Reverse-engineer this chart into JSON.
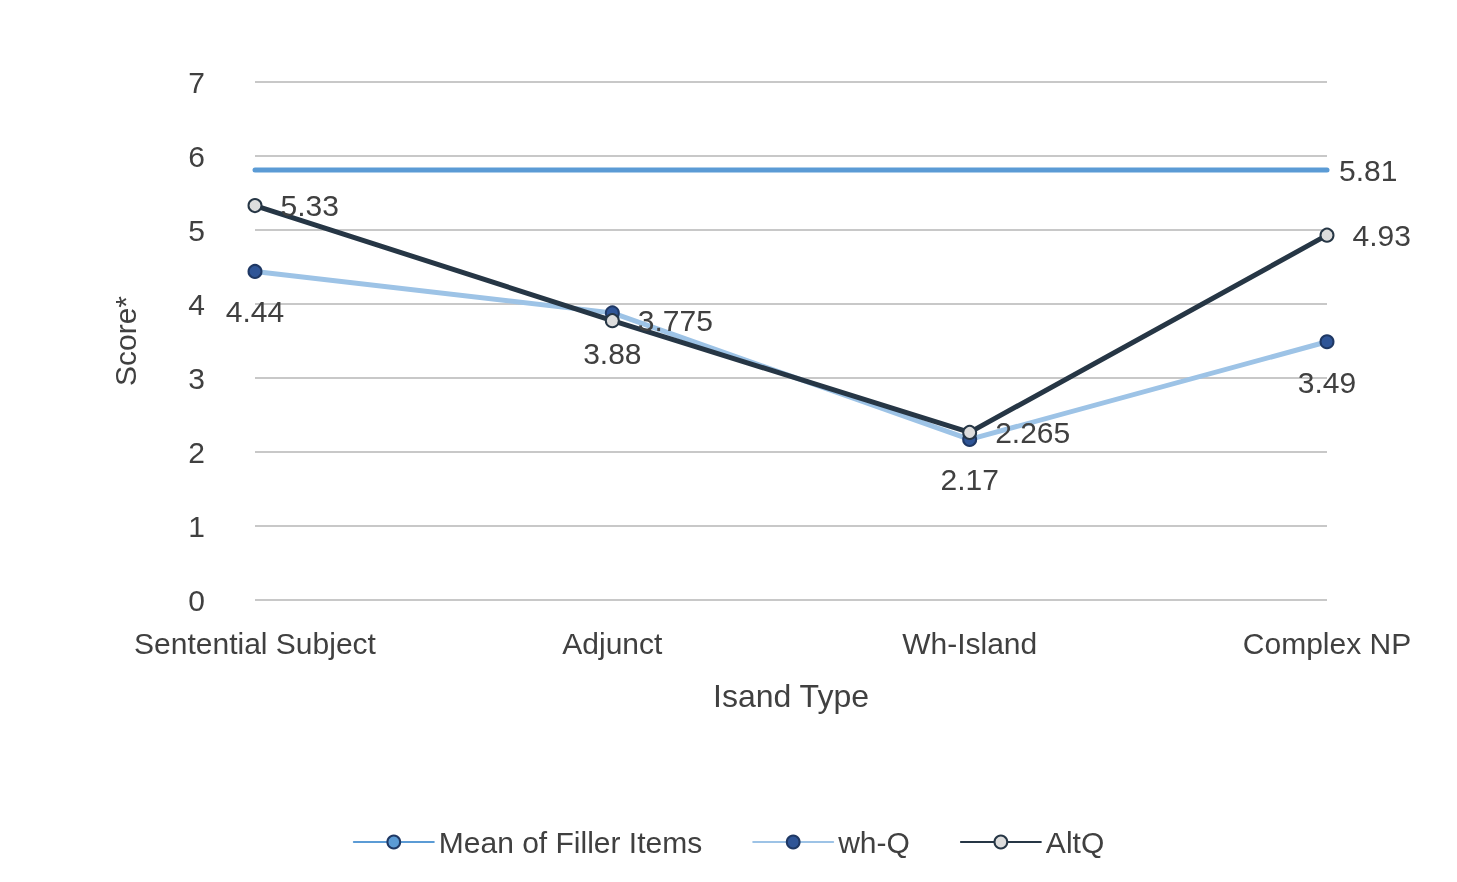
{
  "chart_data": {
    "type": "line",
    "xlabel": "Isand Type",
    "ylabel": "Score*",
    "categories": [
      "Sentential Subject",
      "Adjunct",
      "Wh-Island",
      "Complex NP"
    ],
    "series": [
      {
        "name": "Mean of Filler Items",
        "color": "#5b9bd5",
        "marker": "none",
        "values": [
          5.81,
          5.81,
          5.81,
          5.81
        ],
        "value_labels": [
          null,
          null,
          null,
          "5.81"
        ]
      },
      {
        "name": "wh-Q",
        "color": "#9dc3e6",
        "marker": "circle",
        "values": [
          4.44,
          3.88,
          2.17,
          3.49
        ],
        "value_labels": [
          "4.44",
          "3.88",
          "2.17",
          "3.49"
        ]
      },
      {
        "name": "AltQ",
        "color": "#263645",
        "marker": "circle",
        "values": [
          5.33,
          3.775,
          2.265,
          4.93
        ],
        "value_labels": [
          "5.33",
          "3.775",
          "2.265",
          "4.93"
        ]
      }
    ],
    "ylim": [
      0,
      7
    ],
    "yticks": [
      0,
      1,
      2,
      3,
      4,
      5,
      6,
      7
    ],
    "grid": "y",
    "legend": "bottom"
  }
}
